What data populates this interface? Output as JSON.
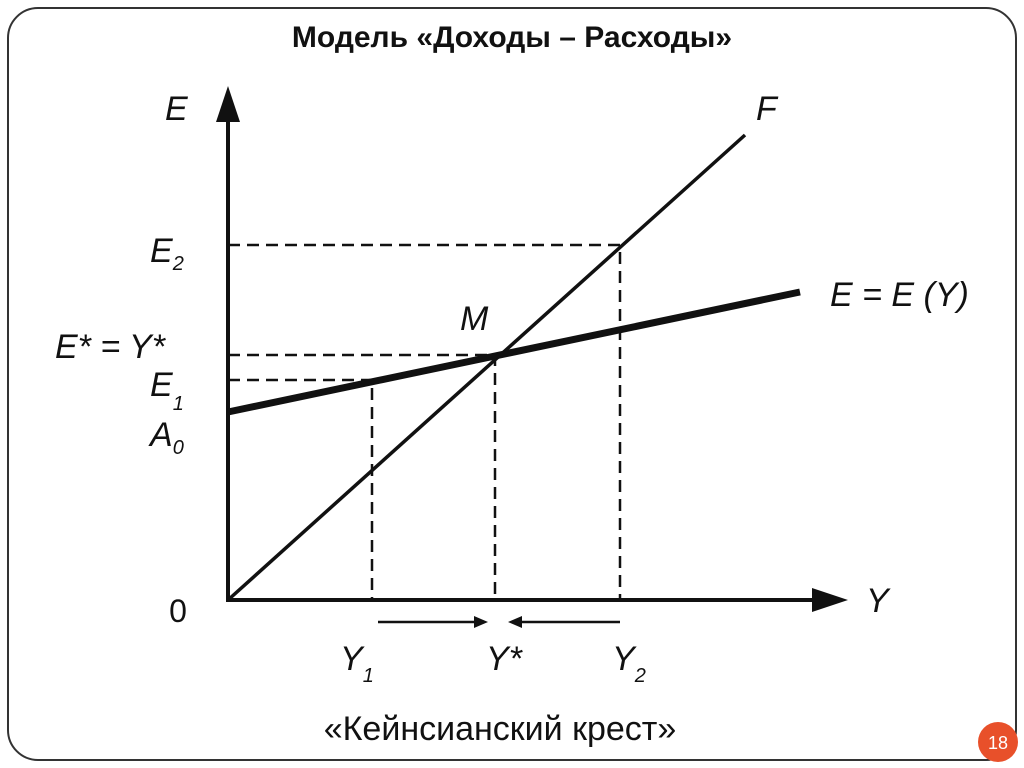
{
  "header": {
    "title": "Модель «Доходы – Расходы»"
  },
  "diagram": {
    "axes": {
      "y_label": "E",
      "x_label": "Y",
      "origin": "0"
    },
    "lines": {
      "f": "F",
      "expenditure": "E = E (Y)"
    },
    "point": "M",
    "y_labels": [
      {
        "text": "E",
        "sub": "2"
      },
      {
        "text": "E* = Y*"
      },
      {
        "text": "E",
        "sub": "1"
      },
      {
        "text": "A",
        "sub": "0"
      }
    ],
    "x_labels": [
      {
        "text": "Y",
        "sub": "1"
      },
      {
        "text": "Y*"
      },
      {
        "text": "Y",
        "sub": "2"
      }
    ]
  },
  "footer": {
    "caption": "«Кейнсианский крест»",
    "page": "18"
  }
}
